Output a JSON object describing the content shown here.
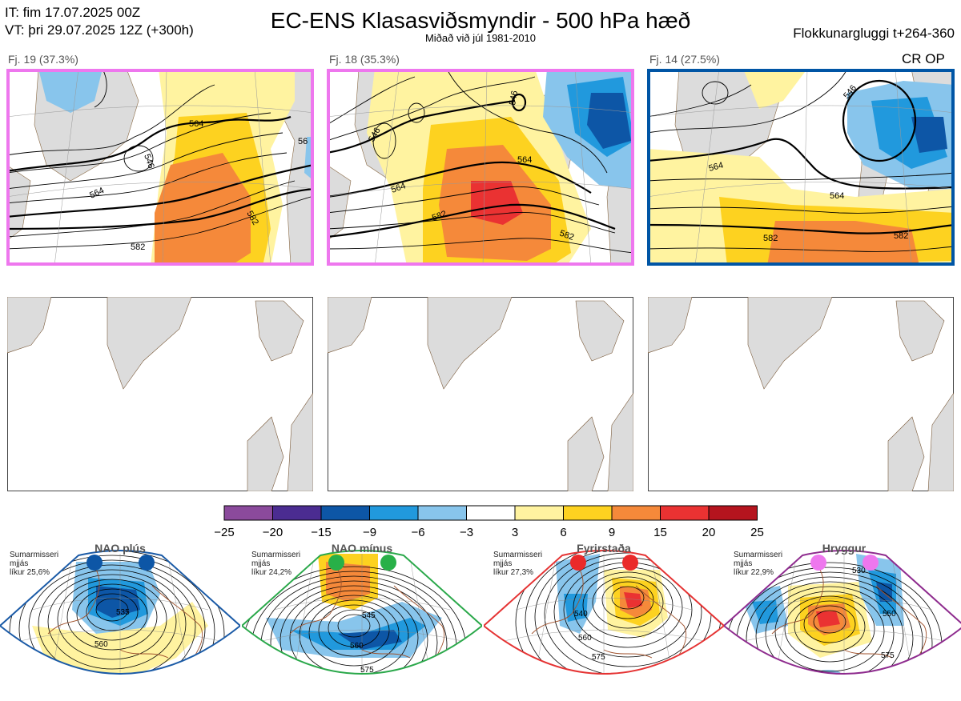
{
  "header": {
    "it": "IT: fim 17.07.2025 00Z",
    "vt": "VT: þri 29.07.2025 12Z  (+300h)",
    "title": "EC-ENS Klasasviðsmyndir - 500 hPa hæð",
    "subtitle": "Miðað við júl 1981-2010",
    "window": "Flokkunargluggi t+264-360"
  },
  "panels": [
    {
      "label": "Fj. 19 (37.3%)",
      "frame_color": "#ee77ee",
      "contours": [
        "546",
        "564",
        "582",
        "56"
      ]
    },
    {
      "label": "Fj. 18 (35.3%)",
      "frame_color": "#ee77ee",
      "contours": [
        "546",
        "564",
        "582",
        "546",
        "564",
        "582"
      ]
    },
    {
      "label": "Fj. 14 (27.5%)",
      "frame_color": "#0055a5",
      "contours": [
        "546",
        "564",
        "582",
        "564",
        "582"
      ],
      "badge": "CR OP"
    }
  ],
  "colorbar": {
    "ticks": [
      "−25",
      "−20",
      "−15",
      "−9",
      "−6",
      "−3",
      "3",
      "6",
      "9",
      "15",
      "20",
      "25"
    ],
    "colors": [
      "#8b4a9c",
      "#4b2c91",
      "#0d56a6",
      "#2199dd",
      "#88c5ec",
      "#ffffff",
      "#fff3a0",
      "#fdd220",
      "#f5893a",
      "#ea3232",
      "#b5141e"
    ]
  },
  "regimes": [
    {
      "name": "NAO plús",
      "season": "Sumarmisseri",
      "avg": "mjjás",
      "prob": "líkur 25,6%",
      "border": "#1a5aa6",
      "dot": "#0d56a6",
      "labels": [
        "535",
        "560"
      ]
    },
    {
      "name": "NAO mínus",
      "season": "Sumarmisseri",
      "avg": "mjjás",
      "prob": "líkur 24,2%",
      "border": "#2aa84a",
      "dot": "#28b048",
      "labels": [
        "545",
        "560",
        "575"
      ]
    },
    {
      "name": "Fyrirstaða",
      "season": "Sumarmisseri",
      "avg": "mjjás",
      "prob": "líkur 27,3%",
      "border": "#e53333",
      "dot": "#ea2a2a",
      "labels": [
        "540",
        "560",
        "575"
      ]
    },
    {
      "name": "Hryggur",
      "season": "Sumarmisseri",
      "avg": "mjjás",
      "prob": "líkur 22,9%",
      "border": "#8e2b8e",
      "dot": "#ee77ee",
      "labels": [
        "530",
        "550",
        "575"
      ]
    }
  ]
}
